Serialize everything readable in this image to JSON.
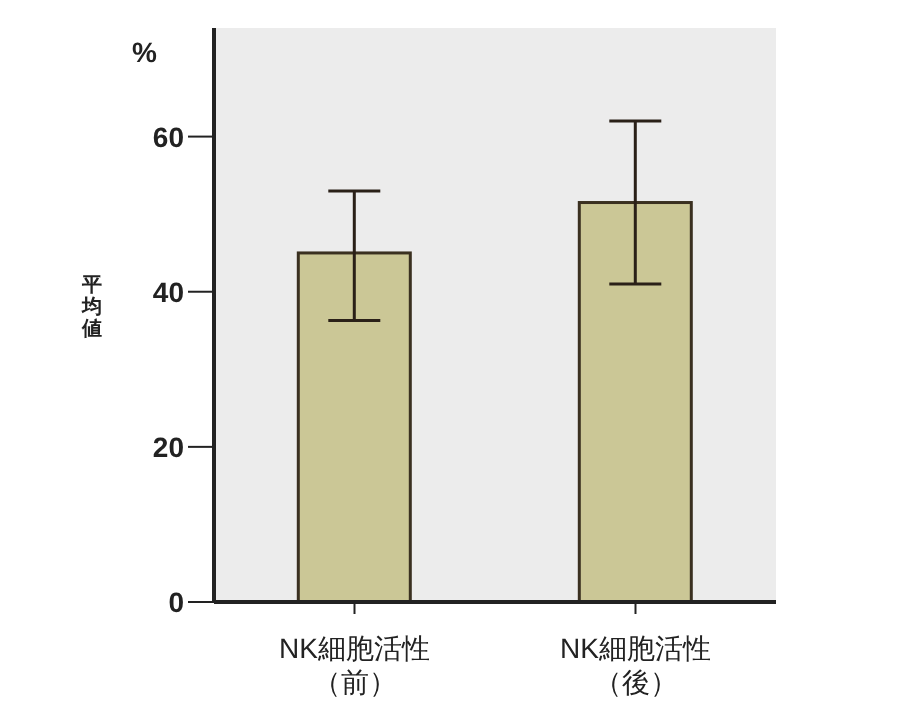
{
  "chart_data": {
    "type": "bar",
    "ylabel": "平均値",
    "annotations": [
      "%"
    ],
    "categories": [
      "NK細胞活性（前）",
      "NK細胞活性（後）"
    ],
    "values": [
      45,
      51.5
    ],
    "color": "#cbc796",
    "errors": [
      [
        36.3,
        53
      ],
      [
        41,
        62
      ]
    ],
    "ylim": [
      0,
      74
    ],
    "yticks": [
      0,
      20,
      40,
      60
    ],
    "grid": false
  }
}
